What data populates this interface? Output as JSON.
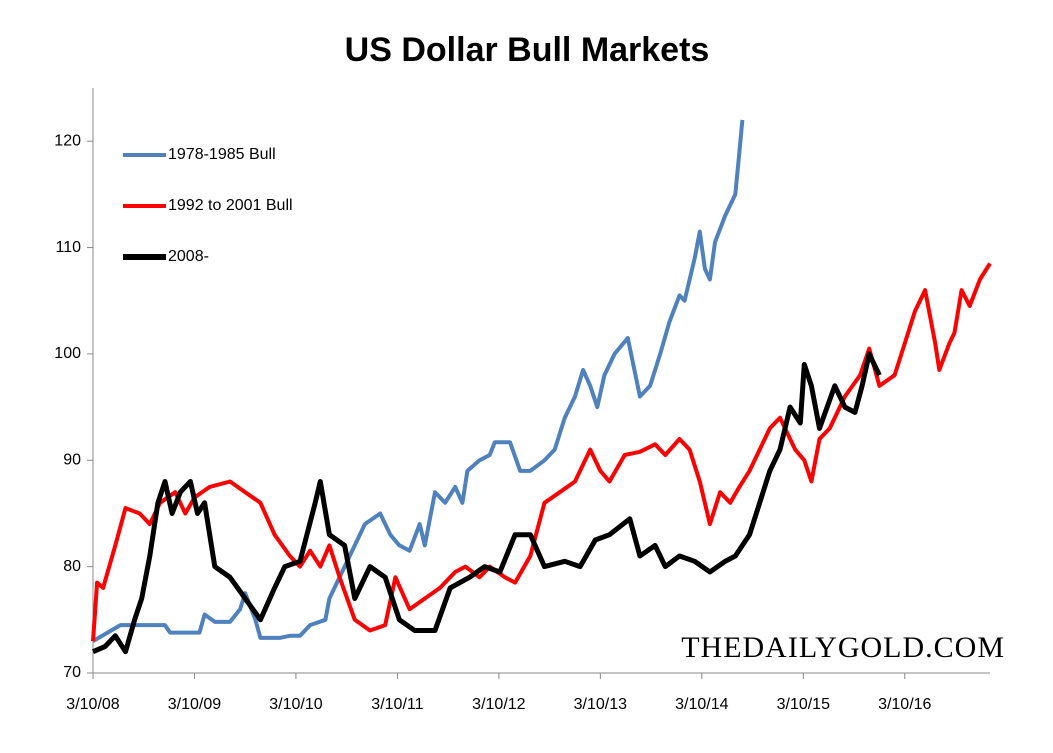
{
  "chart_data": {
    "type": "line",
    "title": "US Dollar Bull Markets",
    "annotation": "THEDAILYGOLD.COM",
    "xlim": [
      2008.19,
      2017.03
    ],
    "xticks": [
      {
        "value": 2008.19,
        "label": "3/10/08"
      },
      {
        "value": 2009.19,
        "label": "3/10/09"
      },
      {
        "value": 2010.19,
        "label": "3/10/10"
      },
      {
        "value": 2011.19,
        "label": "3/10/11"
      },
      {
        "value": 2012.19,
        "label": "3/10/12"
      },
      {
        "value": 2013.19,
        "label": "3/10/13"
      },
      {
        "value": 2014.19,
        "label": "3/10/14"
      },
      {
        "value": 2015.19,
        "label": "3/10/15"
      },
      {
        "value": 2016.19,
        "label": "3/10/16"
      }
    ],
    "ylim": [
      70,
      125
    ],
    "yticks": [
      70,
      80,
      90,
      100,
      110,
      120
    ],
    "grid": false,
    "legend": "upper left",
    "series": [
      {
        "name": "1978-1985 Bull",
        "color": "#4f81bd",
        "x": [
          2008.19,
          2008.46,
          2008.65,
          2008.9,
          2008.95,
          2009.24,
          2009.29,
          2009.39,
          2009.54,
          2009.64,
          2009.69,
          2009.79,
          2009.84,
          2010.03,
          2010.13,
          2010.23,
          2010.33,
          2010.48,
          2010.52,
          2010.72,
          2010.87,
          2011.02,
          2011.12,
          2011.21,
          2011.31,
          2011.41,
          2011.46,
          2011.56,
          2011.66,
          2011.76,
          2011.83,
          2011.88,
          2012.0,
          2012.1,
          2012.15,
          2012.3,
          2012.4,
          2012.5,
          2012.64,
          2012.74,
          2012.84,
          2012.94,
          2013.02,
          2013.09,
          2013.16,
          2013.23,
          2013.33,
          2013.46,
          2013.58,
          2013.68,
          2013.78,
          2013.87,
          2013.97,
          2014.02,
          2014.12,
          2014.17,
          2014.22,
          2014.27,
          2014.32,
          2014.42,
          2014.52,
          2014.56,
          2014.59
        ],
        "values": [
          73,
          74.5,
          74.5,
          74.5,
          73.8,
          73.8,
          75.5,
          74.8,
          74.8,
          76,
          77.5,
          75,
          73.3,
          73.3,
          73.5,
          73.5,
          74.5,
          75,
          77,
          81,
          84,
          85,
          83,
          82,
          81.5,
          84,
          82,
          87,
          86,
          87.5,
          86,
          89,
          90,
          90.5,
          91.7,
          91.7,
          89,
          89,
          90,
          91,
          94,
          96,
          98.5,
          97,
          95,
          98,
          100,
          101.5,
          96,
          97,
          100,
          103,
          105.5,
          105,
          109,
          111.5,
          108,
          107,
          110.5,
          113,
          115,
          119,
          122
        ]
      },
      {
        "name": "1992 to 2001 Bull",
        "color": "#ff0000",
        "x": [
          2008.19,
          2008.23,
          2008.29,
          2008.41,
          2008.51,
          2008.65,
          2008.75,
          2008.85,
          2009.0,
          2009.1,
          2009.19,
          2009.34,
          2009.54,
          2009.69,
          2009.84,
          2009.98,
          2010.13,
          2010.23,
          2010.33,
          2010.43,
          2010.52,
          2010.62,
          2010.77,
          2010.92,
          2011.07,
          2011.17,
          2011.31,
          2011.46,
          2011.61,
          2011.76,
          2011.86,
          2012.0,
          2012.1,
          2012.25,
          2012.35,
          2012.5,
          2012.64,
          2012.79,
          2012.94,
          2013.09,
          2013.19,
          2013.28,
          2013.43,
          2013.58,
          2013.73,
          2013.83,
          2013.97,
          2014.07,
          2014.17,
          2014.27,
          2014.37,
          2014.47,
          2014.56,
          2014.66,
          2014.76,
          2014.86,
          2014.96,
          2015.11,
          2015.2,
          2015.27,
          2015.35,
          2015.45,
          2015.6,
          2015.75,
          2015.84,
          2015.94,
          2016.09,
          2016.19,
          2016.29,
          2016.39,
          2016.49,
          2016.53,
          2016.63,
          2016.68,
          2016.75,
          2016.83,
          2016.93,
          2017.03
        ],
        "values": [
          73,
          78.5,
          78,
          82,
          85.5,
          85,
          84,
          86,
          87,
          85,
          86.5,
          87.5,
          88,
          87,
          86,
          83,
          81,
          80,
          81.5,
          80,
          82,
          79,
          75,
          74,
          74.5,
          79,
          76,
          77,
          78,
          79.5,
          80,
          79,
          80,
          79,
          78.5,
          81,
          86,
          87,
          88,
          91,
          89,
          88,
          90.5,
          90.8,
          91.5,
          90.5,
          92,
          91,
          88,
          84,
          87,
          86,
          87.5,
          89,
          91,
          93,
          94,
          91,
          90,
          88,
          92,
          93,
          96,
          98,
          100.5,
          97,
          98,
          101,
          104,
          106,
          101,
          98.5,
          101,
          102,
          106,
          104.5,
          107,
          108.5
        ]
      },
      {
        "name": "2008-",
        "color": "#000000",
        "x": [
          2008.19,
          2008.31,
          2008.41,
          2008.51,
          2008.6,
          2008.67,
          2008.75,
          2008.83,
          2008.9,
          2008.97,
          2009.05,
          2009.15,
          2009.22,
          2009.29,
          2009.39,
          2009.54,
          2009.69,
          2009.84,
          2009.98,
          2010.08,
          2010.23,
          2010.38,
          2010.43,
          2010.52,
          2010.67,
          2010.77,
          2010.92,
          2011.07,
          2011.21,
          2011.36,
          2011.56,
          2011.71,
          2011.9,
          2012.05,
          2012.2,
          2012.35,
          2012.5,
          2012.64,
          2012.84,
          2012.99,
          2013.14,
          2013.28,
          2013.48,
          2013.58,
          2013.73,
          2013.83,
          2013.97,
          2014.12,
          2014.27,
          2014.42,
          2014.52,
          2014.66,
          2014.76,
          2014.86,
          2014.96,
          2015.06,
          2015.16,
          2015.2,
          2015.27,
          2015.35,
          2015.5,
          2015.6,
          2015.7,
          2015.77,
          2015.84,
          2015.94
        ],
        "values": [
          72,
          72.5,
          73.5,
          72,
          75,
          77,
          81,
          86,
          88,
          85,
          87,
          88,
          85,
          86,
          80,
          79,
          77,
          75,
          78,
          80,
          80.5,
          86,
          88,
          83,
          82,
          77,
          80,
          79,
          75,
          74,
          74,
          78,
          79,
          80,
          79.5,
          83,
          83,
          80,
          80.5,
          80,
          82.5,
          83,
          84.5,
          81,
          82,
          80,
          81,
          80.5,
          79.5,
          80.5,
          81,
          83,
          86,
          89,
          91,
          95,
          93.5,
          99,
          97,
          93,
          97,
          95,
          94.5,
          97,
          100,
          98
        ]
      }
    ]
  }
}
